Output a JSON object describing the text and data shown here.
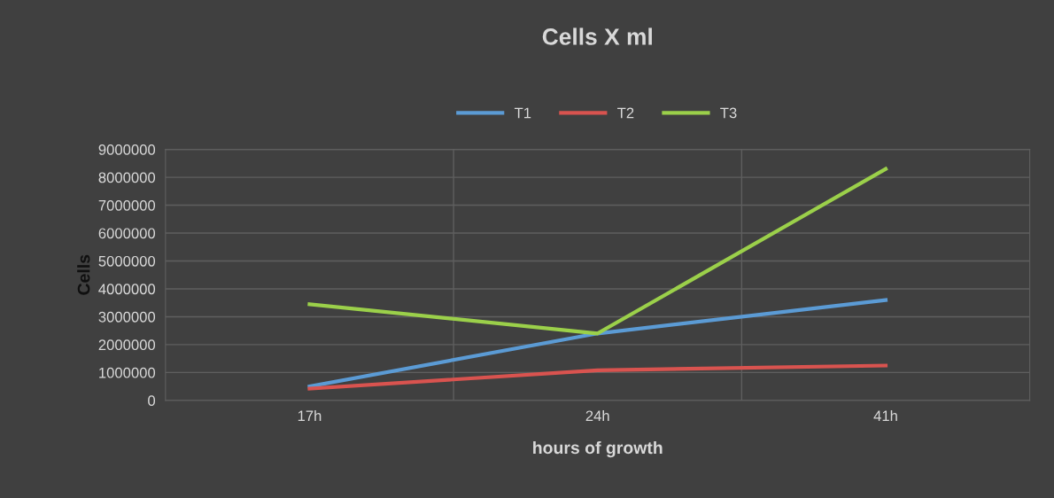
{
  "chart_data": {
    "type": "line",
    "title": "Cells X ml",
    "xlabel": "hours of growth",
    "ylabel": "Cells",
    "categories": [
      "17h",
      "24h",
      "41h"
    ],
    "series": [
      {
        "name": "T1",
        "color": "#5b9bd5",
        "values": [
          500000,
          2400000,
          3600000
        ]
      },
      {
        "name": "T2",
        "color": "#d9534f",
        "values": [
          420000,
          1080000,
          1250000
        ]
      },
      {
        "name": "T3",
        "color": "#9bd04a",
        "values": [
          3450000,
          2400000,
          8300000
        ]
      }
    ],
    "ylim": [
      0,
      9000000
    ],
    "yticks": [
      0,
      1000000,
      2000000,
      3000000,
      4000000,
      5000000,
      6000000,
      7000000,
      8000000,
      9000000
    ],
    "grid": true,
    "legend": "top",
    "marker": "none",
    "line_style": "solid"
  }
}
